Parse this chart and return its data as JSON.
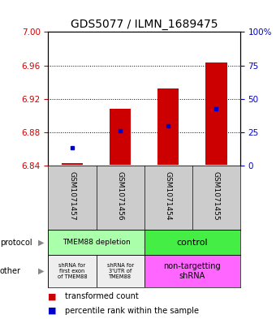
{
  "title": "GDS5077 / ILMN_1689475",
  "samples": [
    "GSM1071457",
    "GSM1071456",
    "GSM1071454",
    "GSM1071455"
  ],
  "bar_bottoms": [
    6.841,
    6.841,
    6.841,
    6.841
  ],
  "bar_tops": [
    6.843,
    6.908,
    6.932,
    6.963
  ],
  "blue_y": [
    6.862,
    6.882,
    6.888,
    6.908
  ],
  "ylim": [
    6.84,
    7.0
  ],
  "yticks_left": [
    6.84,
    6.88,
    6.92,
    6.96,
    7.0
  ],
  "yticks_right_vals": [
    0,
    25,
    50,
    75,
    100
  ],
  "yticks_right_labels": [
    "0",
    "25",
    "50",
    "75",
    "100%"
  ],
  "bar_color": "#cc0000",
  "blue_color": "#0000cc",
  "left_tick_color": "#cc0000",
  "right_tick_color": "#0000cc",
  "n_samples": 4,
  "bar_width": 0.45,
  "title_fontsize": 10,
  "legend_red_label": "transformed count",
  "legend_blue_label": "percentile rank within the sample"
}
